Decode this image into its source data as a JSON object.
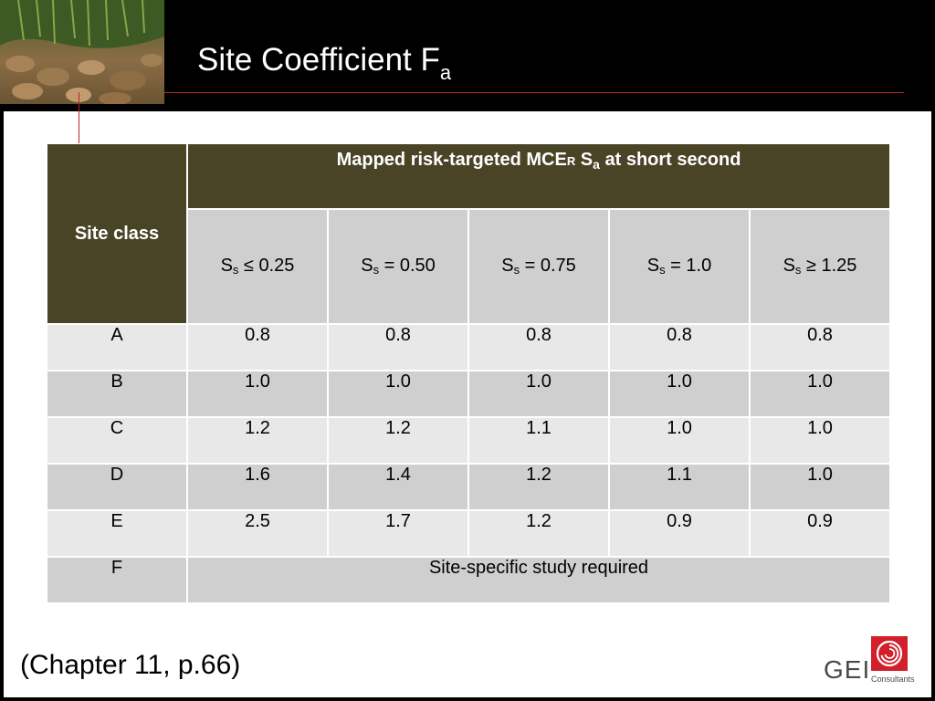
{
  "title": {
    "main": "Site Coefficient F",
    "sub": "a"
  },
  "table": {
    "site_class_header": "Site class",
    "group_header": {
      "prefix": "Mapped risk-targeted MCE",
      "r": "R",
      "s": " S",
      "sub": "a",
      "suffix": " at short second"
    },
    "columns": [
      {
        "sym": "S",
        "sub": "s",
        "rest": " ≤ 0.25"
      },
      {
        "sym": "S",
        "sub": "s",
        "rest": " = 0.50"
      },
      {
        "sym": "S",
        "sub": "s",
        "rest": " = 0.75"
      },
      {
        "sym": "S",
        "sub": "s",
        "rest": " = 1.0"
      },
      {
        "sym": "S",
        "sub": "s",
        "rest": " ≥ 1.25"
      }
    ],
    "rows": [
      {
        "site_class": "A",
        "values": [
          "0.8",
          "0.8",
          "0.8",
          "0.8",
          "0.8"
        ]
      },
      {
        "site_class": "B",
        "values": [
          "1.0",
          "1.0",
          "1.0",
          "1.0",
          "1.0"
        ]
      },
      {
        "site_class": "C",
        "values": [
          "1.2",
          "1.2",
          "1.1",
          "1.0",
          "1.0"
        ]
      },
      {
        "site_class": "D",
        "values": [
          "1.6",
          "1.4",
          "1.2",
          "1.1",
          "1.0"
        ]
      },
      {
        "site_class": "E",
        "values": [
          "2.5",
          "1.7",
          "1.2",
          "0.9",
          "0.9"
        ]
      }
    ],
    "last_row": {
      "site_class": "F",
      "note": "Site-specific study required"
    }
  },
  "footer": {
    "reference": "(Chapter 11, p.66)"
  },
  "logo": {
    "text": "GEI",
    "tagline": "Consultants"
  },
  "colors": {
    "background": "#000000",
    "accent_rule": "#c0222e",
    "header_dark": "#4a4427",
    "row_light": "#e8e8e8",
    "row_dark": "#cfcfcf",
    "logo_red": "#d11f2c"
  }
}
